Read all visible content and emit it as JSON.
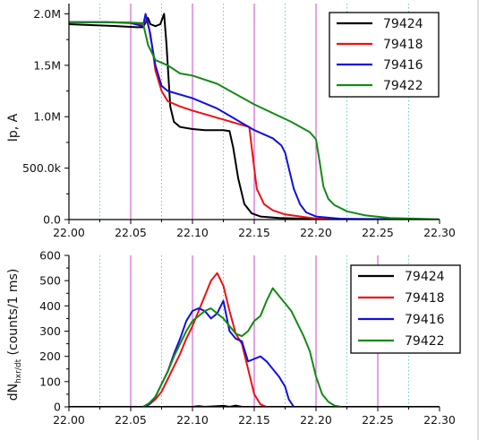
{
  "chart_data": [
    {
      "type": "line",
      "ylabel": "Ip, A",
      "xlim": [
        22.0,
        22.3
      ],
      "ylim": [
        0,
        2100000
      ],
      "x_ticks": [
        22.0,
        22.05,
        22.1,
        22.15,
        22.2,
        22.25,
        22.3
      ],
      "x_tick_labels": [
        "22.00",
        "22.05",
        "22.10",
        "22.15",
        "22.20",
        "22.25",
        "22.30"
      ],
      "y_ticks": [
        0,
        500000,
        1000000,
        1500000,
        2000000
      ],
      "y_tick_labels": [
        "0.0",
        "500.0k",
        "1.0M",
        "1.5M",
        "2.0M"
      ],
      "vlines_magenta": [
        22.05,
        22.1,
        22.15,
        22.2
      ],
      "vlines_cyan_dotted": [
        22.025,
        22.075,
        22.125,
        22.175,
        22.225,
        22.275
      ],
      "legend_position": "top-right",
      "series": [
        {
          "name": "79424",
          "color": "#000000",
          "points": [
            [
              22.0,
              1900000
            ],
            [
              22.02,
              1890000
            ],
            [
              22.04,
              1880000
            ],
            [
              22.055,
              1870000
            ],
            [
              22.06,
              1870000
            ],
            [
              22.064,
              1960000
            ],
            [
              22.066,
              1900000
            ],
            [
              22.07,
              1880000
            ],
            [
              22.074,
              1900000
            ],
            [
              22.077,
              2000000
            ],
            [
              22.079,
              1700000
            ],
            [
              22.082,
              1100000
            ],
            [
              22.085,
              950000
            ],
            [
              22.09,
              900000
            ],
            [
              22.1,
              880000
            ],
            [
              22.11,
              870000
            ],
            [
              22.125,
              870000
            ],
            [
              22.13,
              860000
            ],
            [
              22.133,
              700000
            ],
            [
              22.137,
              400000
            ],
            [
              22.142,
              150000
            ],
            [
              22.148,
              60000
            ],
            [
              22.155,
              30000
            ],
            [
              22.17,
              15000
            ],
            [
              22.2,
              5000
            ],
            [
              22.3,
              0
            ]
          ]
        },
        {
          "name": "79418",
          "color": "#ee1111",
          "points": [
            [
              22.0,
              1920000
            ],
            [
              22.03,
              1920000
            ],
            [
              22.05,
              1915000
            ],
            [
              22.06,
              1900000
            ],
            [
              22.063,
              1950000
            ],
            [
              22.066,
              1800000
            ],
            [
              22.07,
              1450000
            ],
            [
              22.075,
              1250000
            ],
            [
              22.08,
              1150000
            ],
            [
              22.09,
              1100000
            ],
            [
              22.1,
              1060000
            ],
            [
              22.12,
              990000
            ],
            [
              22.14,
              920000
            ],
            [
              22.146,
              900000
            ],
            [
              22.148,
              700000
            ],
            [
              22.152,
              300000
            ],
            [
              22.158,
              150000
            ],
            [
              22.165,
              90000
            ],
            [
              22.175,
              50000
            ],
            [
              22.19,
              25000
            ],
            [
              22.2,
              10000
            ],
            [
              22.22,
              3000
            ],
            [
              22.3,
              0
            ]
          ]
        },
        {
          "name": "79416",
          "color": "#1111dd",
          "points": [
            [
              22.0,
              1920000
            ],
            [
              22.03,
              1920000
            ],
            [
              22.05,
              1910000
            ],
            [
              22.06,
              1880000
            ],
            [
              22.062,
              2000000
            ],
            [
              22.065,
              1850000
            ],
            [
              22.07,
              1500000
            ],
            [
              22.075,
              1300000
            ],
            [
              22.08,
              1250000
            ],
            [
              22.1,
              1180000
            ],
            [
              22.12,
              1080000
            ],
            [
              22.15,
              870000
            ],
            [
              22.165,
              790000
            ],
            [
              22.172,
              720000
            ],
            [
              22.175,
              650000
            ],
            [
              22.178,
              500000
            ],
            [
              22.182,
              300000
            ],
            [
              22.187,
              150000
            ],
            [
              22.192,
              70000
            ],
            [
              22.2,
              30000
            ],
            [
              22.22,
              8000
            ],
            [
              22.3,
              0
            ]
          ]
        },
        {
          "name": "79422",
          "color": "#148a14",
          "points": [
            [
              22.0,
              1920000
            ],
            [
              22.03,
              1920000
            ],
            [
              22.05,
              1915000
            ],
            [
              22.06,
              1910000
            ],
            [
              22.064,
              1700000
            ],
            [
              22.07,
              1550000
            ],
            [
              22.08,
              1500000
            ],
            [
              22.09,
              1420000
            ],
            [
              22.1,
              1400000
            ],
            [
              22.12,
              1320000
            ],
            [
              22.15,
              1120000
            ],
            [
              22.18,
              950000
            ],
            [
              22.195,
              850000
            ],
            [
              22.2,
              780000
            ],
            [
              22.203,
              560000
            ],
            [
              22.206,
              320000
            ],
            [
              22.21,
              200000
            ],
            [
              22.215,
              140000
            ],
            [
              22.225,
              80000
            ],
            [
              22.24,
              40000
            ],
            [
              22.26,
              15000
            ],
            [
              22.3,
              3000
            ]
          ]
        }
      ]
    },
    {
      "type": "line",
      "ylabel": "dN_hxr/dt (counts/1 ms)",
      "xlim": [
        22.0,
        22.3
      ],
      "ylim": [
        0,
        600
      ],
      "x_ticks": [
        22.0,
        22.05,
        22.1,
        22.15,
        22.2,
        22.25,
        22.3
      ],
      "x_tick_labels": [
        "22.00",
        "22.05",
        "22.10",
        "22.15",
        "22.20",
        "22.25",
        "22.30"
      ],
      "y_ticks": [
        0,
        100,
        200,
        300,
        400,
        500,
        600
      ],
      "y_tick_labels": [
        "0",
        "100",
        "200",
        "300",
        "400",
        "500",
        "600"
      ],
      "vlines_magenta": [
        22.05,
        22.1,
        22.15,
        22.2,
        22.25
      ],
      "vlines_cyan_dotted": [
        22.025,
        22.075,
        22.125,
        22.175,
        22.225,
        22.275
      ],
      "legend_position": "right",
      "series": [
        {
          "name": "79424",
          "color": "#000000",
          "points": [
            [
              22.0,
              0
            ],
            [
              22.1,
              0
            ],
            [
              22.105,
              3
            ],
            [
              22.11,
              0
            ],
            [
              22.125,
              4
            ],
            [
              22.13,
              0
            ],
            [
              22.135,
              5
            ],
            [
              22.14,
              0
            ],
            [
              22.3,
              0
            ]
          ]
        },
        {
          "name": "79418",
          "color": "#ee1111",
          "points": [
            [
              22.06,
              0
            ],
            [
              22.065,
              10
            ],
            [
              22.07,
              30
            ],
            [
              22.075,
              60
            ],
            [
              22.08,
              110
            ],
            [
              22.085,
              160
            ],
            [
              22.09,
              210
            ],
            [
              22.095,
              270
            ],
            [
              22.1,
              320
            ],
            [
              22.105,
              380
            ],
            [
              22.11,
              440
            ],
            [
              22.115,
              500
            ],
            [
              22.12,
              530
            ],
            [
              22.125,
              480
            ],
            [
              22.13,
              380
            ],
            [
              22.135,
              290
            ],
            [
              22.14,
              250
            ],
            [
              22.145,
              150
            ],
            [
              22.15,
              50
            ],
            [
              22.155,
              10
            ],
            [
              22.16,
              0
            ]
          ]
        },
        {
          "name": "79416",
          "color": "#1111dd",
          "points": [
            [
              22.06,
              0
            ],
            [
              22.065,
              10
            ],
            [
              22.07,
              40
            ],
            [
              22.075,
              90
            ],
            [
              22.08,
              140
            ],
            [
              22.085,
              210
            ],
            [
              22.09,
              270
            ],
            [
              22.095,
              340
            ],
            [
              22.1,
              380
            ],
            [
              22.105,
              390
            ],
            [
              22.11,
              380
            ],
            [
              22.115,
              350
            ],
            [
              22.12,
              370
            ],
            [
              22.125,
              420
            ],
            [
              22.13,
              300
            ],
            [
              22.135,
              270
            ],
            [
              22.14,
              260
            ],
            [
              22.145,
              180
            ],
            [
              22.15,
              190
            ],
            [
              22.155,
              200
            ],
            [
              22.16,
              180
            ],
            [
              22.165,
              150
            ],
            [
              22.17,
              120
            ],
            [
              22.175,
              80
            ],
            [
              22.178,
              30
            ],
            [
              22.182,
              0
            ]
          ]
        },
        {
          "name": "79422",
          "color": "#148a14",
          "points": [
            [
              22.06,
              0
            ],
            [
              22.065,
              15
            ],
            [
              22.07,
              40
            ],
            [
              22.075,
              90
            ],
            [
              22.08,
              140
            ],
            [
              22.085,
              200
            ],
            [
              22.09,
              250
            ],
            [
              22.095,
              300
            ],
            [
              22.1,
              340
            ],
            [
              22.105,
              360
            ],
            [
              22.11,
              380
            ],
            [
              22.115,
              390
            ],
            [
              22.12,
              370
            ],
            [
              22.125,
              350
            ],
            [
              22.13,
              320
            ],
            [
              22.135,
              290
            ],
            [
              22.14,
              280
            ],
            [
              22.145,
              300
            ],
            [
              22.15,
              340
            ],
            [
              22.155,
              360
            ],
            [
              22.16,
              420
            ],
            [
              22.165,
              470
            ],
            [
              22.17,
              440
            ],
            [
              22.175,
              410
            ],
            [
              22.18,
              380
            ],
            [
              22.185,
              330
            ],
            [
              22.19,
              280
            ],
            [
              22.195,
              220
            ],
            [
              22.2,
              120
            ],
            [
              22.205,
              50
            ],
            [
              22.21,
              20
            ],
            [
              22.215,
              5
            ],
            [
              22.22,
              0
            ]
          ]
        }
      ]
    }
  ]
}
